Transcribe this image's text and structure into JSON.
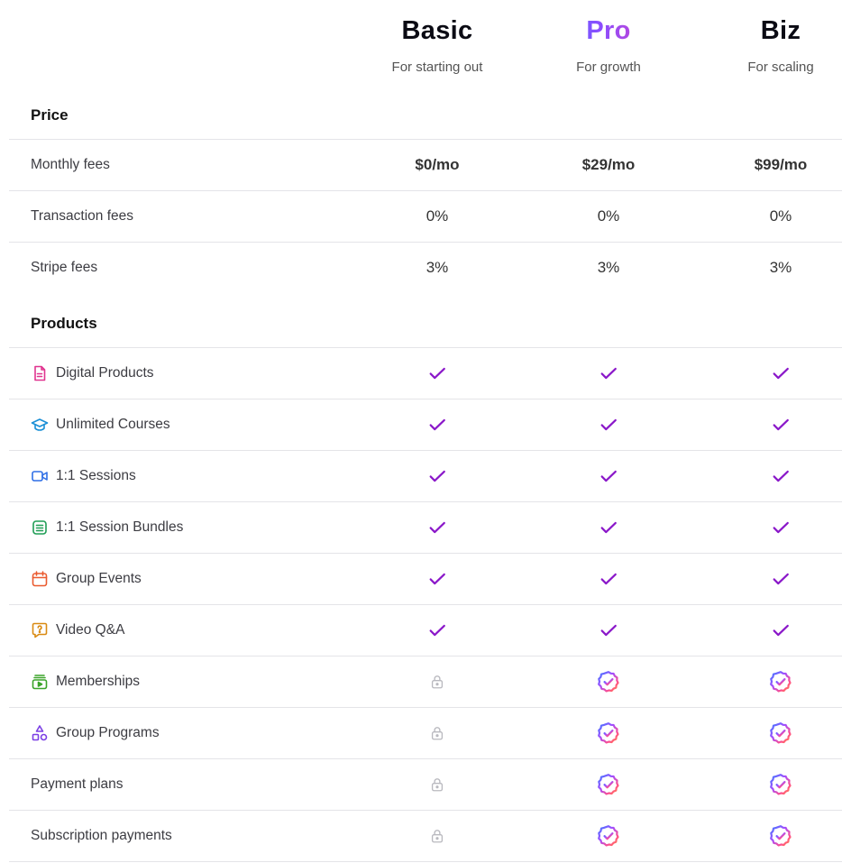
{
  "plans": [
    {
      "name": "Basic",
      "subtitle": "For starting out"
    },
    {
      "name": "Pro",
      "subtitle": "For growth"
    },
    {
      "name": "Biz",
      "subtitle": "For scaling"
    }
  ],
  "sections": {
    "price": "Price",
    "products": "Products"
  },
  "price_rows": [
    {
      "label": "Monthly fees",
      "values": [
        "$0/mo",
        "$29/mo",
        "$99/mo"
      ]
    },
    {
      "label": "Transaction fees",
      "values": [
        "0%",
        "0%",
        "0%"
      ]
    },
    {
      "label": "Stripe fees",
      "values": [
        "3%",
        "3%",
        "3%"
      ]
    }
  ],
  "product_rows": [
    {
      "label": "Digital Products",
      "icon": "document-icon",
      "icon_color": "#e0348f",
      "values": [
        "check",
        "check",
        "check"
      ]
    },
    {
      "label": "Unlimited Courses",
      "icon": "graduation-cap-icon",
      "icon_color": "#1a8fd6",
      "values": [
        "check",
        "check",
        "check"
      ]
    },
    {
      "label": "1:1 Sessions",
      "icon": "video-camera-icon",
      "icon_color": "#2f6fe6",
      "values": [
        "check",
        "check",
        "check"
      ]
    },
    {
      "label": "1:1 Session Bundles",
      "icon": "stacked-list-icon",
      "icon_color": "#1f9d55",
      "values": [
        "check",
        "check",
        "check"
      ]
    },
    {
      "label": "Group Events",
      "icon": "calendar-icon",
      "icon_color": "#ea5a2f",
      "values": [
        "check",
        "check",
        "check"
      ]
    },
    {
      "label": "Video Q&A",
      "icon": "question-bubble-icon",
      "icon_color": "#d98a12",
      "values": [
        "check",
        "check",
        "check"
      ]
    },
    {
      "label": "Memberships",
      "icon": "membership-play-icon",
      "icon_color": "#3aa329",
      "values": [
        "lock",
        "badge",
        "badge"
      ]
    },
    {
      "label": "Group Programs",
      "icon": "shapes-icon",
      "icon_color": "#7b3fe4",
      "values": [
        "lock",
        "badge",
        "badge"
      ]
    },
    {
      "label": "Payment plans",
      "icon": "",
      "icon_color": "",
      "values": [
        "lock",
        "badge",
        "badge"
      ]
    },
    {
      "label": "Subscription payments",
      "icon": "",
      "icon_color": "",
      "values": [
        "lock",
        "badge",
        "badge"
      ]
    }
  ],
  "colors": {
    "check": "#8a17c9",
    "lock": "#b9b9bf",
    "badge_gradient": [
      "#3b7bff",
      "#a34dff",
      "#ff4f8b",
      "#ff8a3d"
    ],
    "divider": "#e4e4e8"
  }
}
